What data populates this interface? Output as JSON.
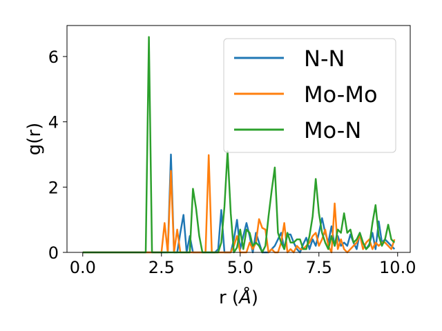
{
  "chart_data": {
    "type": "line",
    "xlabel_main": "r (",
    "xlabel_unit": "Å",
    "xlabel_close": ")",
    "ylabel": "g(r)",
    "xlim": [
      -0.5,
      10.4
    ],
    "ylim": [
      0,
      6.95
    ],
    "xticks": [
      0.0,
      2.5,
      5.0,
      7.5,
      10.0
    ],
    "xtick_labels": [
      "0.0",
      "2.5",
      "5.0",
      "7.5",
      "10.0"
    ],
    "yticks": [
      0,
      2,
      4,
      6
    ],
    "ytick_labels": [
      "0",
      "2",
      "4",
      "6"
    ],
    "grid": false,
    "legend_position": "top-right",
    "series": [
      {
        "name": "N-N",
        "color": "#1f77b4",
        "points": [
          [
            0,
            0
          ],
          [
            2.6,
            0
          ],
          [
            2.7,
            0
          ],
          [
            2.8,
            3.0
          ],
          [
            2.9,
            0
          ],
          [
            3.0,
            0
          ],
          [
            3.1,
            0.6
          ],
          [
            3.2,
            1.15
          ],
          [
            3.3,
            0
          ],
          [
            3.4,
            0.5
          ],
          [
            3.5,
            0
          ],
          [
            4.2,
            0
          ],
          [
            4.3,
            0.1
          ],
          [
            4.4,
            1.3
          ],
          [
            4.5,
            0
          ],
          [
            4.6,
            0
          ],
          [
            4.7,
            0
          ],
          [
            4.8,
            0.4
          ],
          [
            4.9,
            1.0
          ],
          [
            5.0,
            0.1
          ],
          [
            5.1,
            0.5
          ],
          [
            5.2,
            0.9
          ],
          [
            5.3,
            0.5
          ],
          [
            5.4,
            0
          ],
          [
            5.5,
            0.6
          ],
          [
            5.6,
            0.3
          ],
          [
            5.7,
            0
          ],
          [
            5.8,
            0
          ],
          [
            5.9,
            0
          ],
          [
            6.0,
            0.1
          ],
          [
            6.1,
            0.2
          ],
          [
            6.2,
            0.4
          ],
          [
            6.3,
            0.6
          ],
          [
            6.4,
            0.1
          ],
          [
            6.5,
            0.55
          ],
          [
            6.6,
            0.55
          ],
          [
            6.7,
            0.3
          ],
          [
            6.8,
            0.1
          ],
          [
            6.9,
            0
          ],
          [
            7.0,
            0.25
          ],
          [
            7.1,
            0.45
          ],
          [
            7.2,
            0.1
          ],
          [
            7.3,
            0.4
          ],
          [
            7.4,
            0.2
          ],
          [
            7.5,
            0.6
          ],
          [
            7.6,
            1.05
          ],
          [
            7.7,
            0.6
          ],
          [
            7.8,
            0.3
          ],
          [
            7.9,
            0.8
          ],
          [
            8.0,
            0.2
          ],
          [
            8.1,
            0.5
          ],
          [
            8.2,
            0.2
          ],
          [
            8.3,
            0.3
          ],
          [
            8.4,
            0.2
          ],
          [
            8.5,
            0.55
          ],
          [
            8.6,
            0.3
          ],
          [
            8.7,
            0.1
          ],
          [
            8.8,
            0.6
          ],
          [
            8.9,
            0.3
          ],
          [
            9.0,
            0.1
          ],
          [
            9.1,
            0.25
          ],
          [
            9.2,
            0.6
          ],
          [
            9.3,
            0.1
          ],
          [
            9.4,
            0.95
          ],
          [
            9.5,
            0.3
          ],
          [
            9.6,
            0.4
          ],
          [
            9.7,
            0.3
          ],
          [
            9.8,
            0.2
          ],
          [
            9.9,
            0.1
          ]
        ]
      },
      {
        "name": "Mo-Mo",
        "color": "#ff7f0e",
        "points": [
          [
            0,
            0
          ],
          [
            2.4,
            0
          ],
          [
            2.5,
            0
          ],
          [
            2.6,
            0.9
          ],
          [
            2.7,
            0
          ],
          [
            2.8,
            2.5
          ],
          [
            2.9,
            0
          ],
          [
            3.0,
            0.7
          ],
          [
            3.1,
            0
          ],
          [
            3.2,
            0
          ],
          [
            3.3,
            0
          ],
          [
            3.9,
            0
          ],
          [
            4.0,
            2.98
          ],
          [
            4.1,
            0
          ],
          [
            4.2,
            0
          ],
          [
            4.3,
            0
          ],
          [
            4.4,
            0
          ],
          [
            4.5,
            0
          ],
          [
            4.6,
            0
          ],
          [
            4.7,
            0
          ],
          [
            4.8,
            0.2
          ],
          [
            4.9,
            0.5
          ],
          [
            5.0,
            0
          ],
          [
            5.1,
            0
          ],
          [
            5.2,
            0
          ],
          [
            5.3,
            0.3
          ],
          [
            5.4,
            0.1
          ],
          [
            5.5,
            0.3
          ],
          [
            5.6,
            1.02
          ],
          [
            5.7,
            0.75
          ],
          [
            5.8,
            0.7
          ],
          [
            5.9,
            0
          ],
          [
            6.0,
            0.1
          ],
          [
            6.1,
            0
          ],
          [
            6.2,
            0
          ],
          [
            6.3,
            0.3
          ],
          [
            6.4,
            0.9
          ],
          [
            6.5,
            0
          ],
          [
            6.6,
            0.1
          ],
          [
            6.7,
            0
          ],
          [
            6.8,
            0.2
          ],
          [
            6.9,
            0.1
          ],
          [
            7.0,
            0.1
          ],
          [
            7.1,
            0.2
          ],
          [
            7.2,
            0.3
          ],
          [
            7.3,
            0.5
          ],
          [
            7.4,
            0.6
          ],
          [
            7.5,
            0.2
          ],
          [
            7.6,
            0.4
          ],
          [
            7.7,
            0.7
          ],
          [
            7.8,
            0.2
          ],
          [
            7.9,
            0
          ],
          [
            8.0,
            1.5
          ],
          [
            8.1,
            0.1
          ],
          [
            8.2,
            0.4
          ],
          [
            8.3,
            0.1
          ],
          [
            8.4,
            0
          ],
          [
            8.5,
            0.1
          ],
          [
            8.6,
            0.2
          ],
          [
            8.7,
            0.3
          ],
          [
            8.8,
            0.55
          ],
          [
            8.9,
            0.1
          ],
          [
            9.0,
            0.3
          ],
          [
            9.1,
            0.4
          ],
          [
            9.2,
            0.1
          ],
          [
            9.3,
            0.3
          ],
          [
            9.4,
            0.2
          ],
          [
            9.5,
            0.3
          ],
          [
            9.6,
            0.3
          ],
          [
            9.7,
            0.2
          ],
          [
            9.8,
            0.1
          ],
          [
            9.9,
            0.4
          ]
        ]
      },
      {
        "name": "Mo-N",
        "color": "#2ca02c",
        "points": [
          [
            0,
            0
          ],
          [
            1.9,
            0
          ],
          [
            2.0,
            0
          ],
          [
            2.1,
            6.6
          ],
          [
            2.2,
            0
          ],
          [
            2.3,
            0
          ],
          [
            2.4,
            0
          ],
          [
            2.5,
            0
          ],
          [
            2.6,
            0
          ],
          [
            2.7,
            0
          ],
          [
            2.8,
            0
          ],
          [
            2.9,
            0
          ],
          [
            3.0,
            0
          ],
          [
            3.1,
            0
          ],
          [
            3.2,
            0
          ],
          [
            3.3,
            0
          ],
          [
            3.4,
            0
          ],
          [
            3.5,
            1.95
          ],
          [
            3.6,
            1.35
          ],
          [
            3.7,
            0.5
          ],
          [
            3.8,
            0
          ],
          [
            3.9,
            0
          ],
          [
            4.0,
            0
          ],
          [
            4.1,
            0
          ],
          [
            4.2,
            0
          ],
          [
            4.3,
            0
          ],
          [
            4.4,
            0.3
          ],
          [
            4.5,
            1.4
          ],
          [
            4.6,
            3.1
          ],
          [
            4.7,
            1.2
          ],
          [
            4.8,
            0
          ],
          [
            4.9,
            0.15
          ],
          [
            5.0,
            0.7
          ],
          [
            5.1,
            0.1
          ],
          [
            5.2,
            0.7
          ],
          [
            5.3,
            0.6
          ],
          [
            5.4,
            0.2
          ],
          [
            5.5,
            0.3
          ],
          [
            5.6,
            0.2
          ],
          [
            5.7,
            0
          ],
          [
            5.8,
            0.2
          ],
          [
            5.9,
            1.1
          ],
          [
            6.0,
            1.9
          ],
          [
            6.1,
            2.6
          ],
          [
            6.2,
            0.6
          ],
          [
            6.3,
            0.3
          ],
          [
            6.4,
            0.1
          ],
          [
            6.5,
            0.6
          ],
          [
            6.6,
            0.3
          ],
          [
            6.7,
            0.3
          ],
          [
            6.8,
            0.4
          ],
          [
            6.9,
            0.4
          ],
          [
            7.0,
            0.1
          ],
          [
            7.1,
            0.1
          ],
          [
            7.2,
            0.5
          ],
          [
            7.3,
            1.1
          ],
          [
            7.4,
            2.25
          ],
          [
            7.5,
            1.2
          ],
          [
            7.6,
            0.6
          ],
          [
            7.7,
            0.3
          ],
          [
            7.8,
            0.1
          ],
          [
            7.9,
            0.5
          ],
          [
            8.0,
            0.2
          ],
          [
            8.1,
            0.7
          ],
          [
            8.2,
            0.6
          ],
          [
            8.3,
            1.2
          ],
          [
            8.4,
            0.6
          ],
          [
            8.5,
            0.7
          ],
          [
            8.6,
            0.3
          ],
          [
            8.7,
            0.4
          ],
          [
            8.8,
            0.6
          ],
          [
            8.9,
            0.3
          ],
          [
            9.0,
            0.1
          ],
          [
            9.1,
            0.2
          ],
          [
            9.2,
            0.9
          ],
          [
            9.3,
            1.45
          ],
          [
            9.4,
            0.5
          ],
          [
            9.5,
            0.2
          ],
          [
            9.6,
            0.4
          ],
          [
            9.7,
            0.85
          ],
          [
            9.8,
            0.4
          ],
          [
            9.9,
            0.3
          ]
        ]
      }
    ]
  }
}
